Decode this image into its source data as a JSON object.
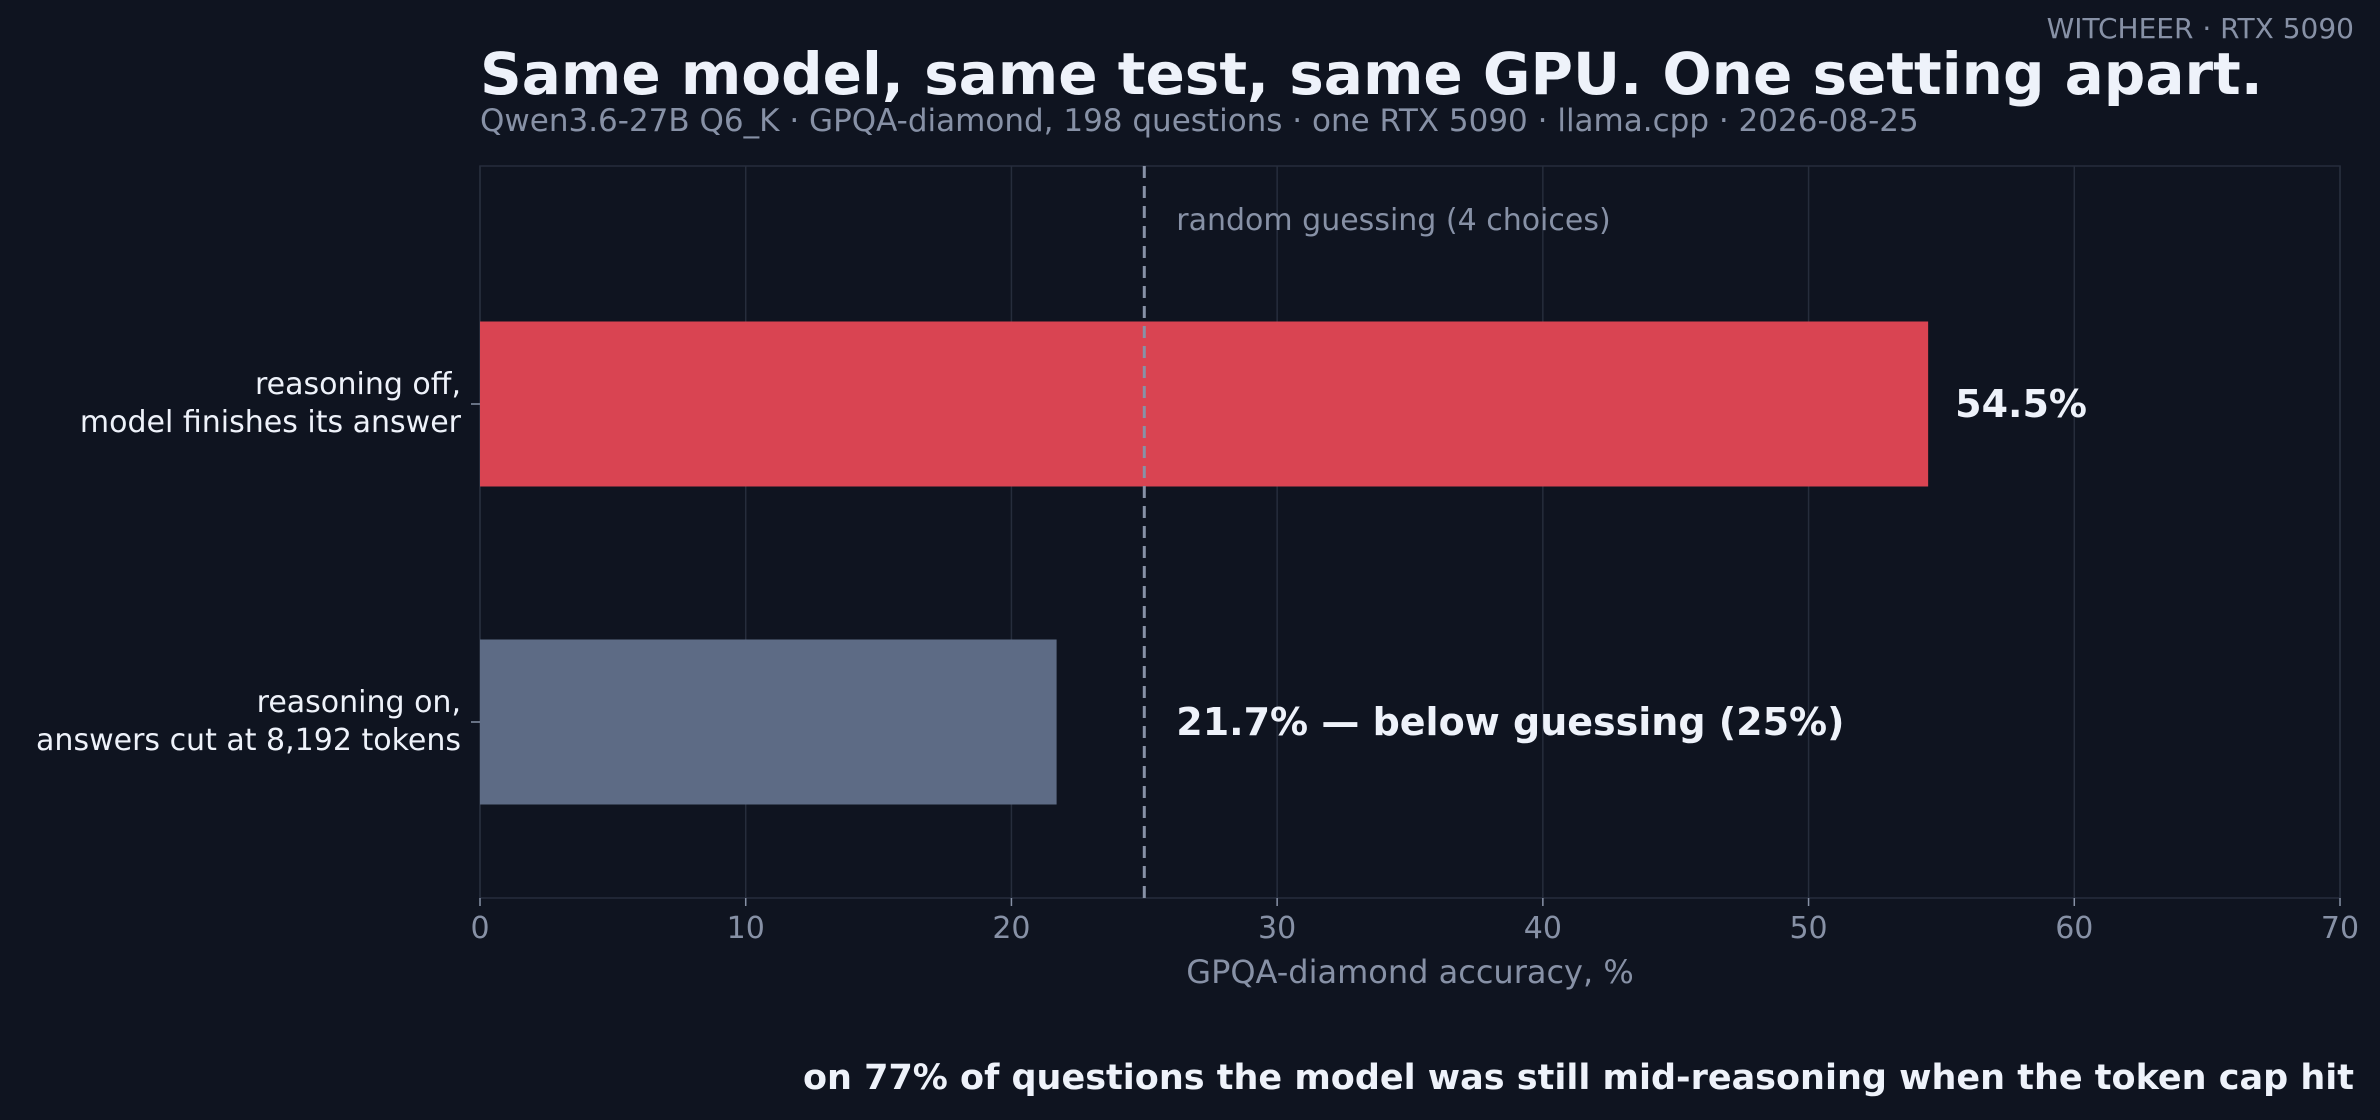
{
  "watermark": "WITCHEER · RTX 5090",
  "footnote": "on 77% of questions the model was still mid-reasoning when the token cap hit",
  "colors": {
    "background": "#0f1420",
    "bar_off": "#d94452",
    "bar_on": "#5d6b85",
    "text": "#eef2fa",
    "muted": "#8791a6",
    "grid": "#262d3c"
  },
  "chart_data": {
    "type": "bar",
    "orientation": "horizontal",
    "title": "Same model, same test, same GPU. One setting apart.",
    "subtitle": "Qwen3.6-27B Q6_K · GPQA-diamond, 198 questions · one RTX 5090 · llama.cpp · 2026-08-25",
    "xlabel": "GPQA-diamond accuracy, %",
    "ylabel": "",
    "xlim": [
      0,
      70
    ],
    "xticks": [
      0,
      10,
      20,
      30,
      40,
      50,
      60,
      70
    ],
    "grid": "vertical",
    "categories": [
      [
        "reasoning off,",
        "model finishes its answer"
      ],
      [
        "reasoning on,",
        "answers cut at 8,192 tokens"
      ]
    ],
    "values": [
      54.5,
      21.7
    ],
    "value_labels": [
      "54.5%",
      "21.7%  — below guessing (25%)"
    ],
    "bar_colors": [
      "#d94452",
      "#5d6b85"
    ],
    "reference_line": {
      "x": 25,
      "label": "random guessing (4 choices)",
      "style": "dashed"
    }
  }
}
